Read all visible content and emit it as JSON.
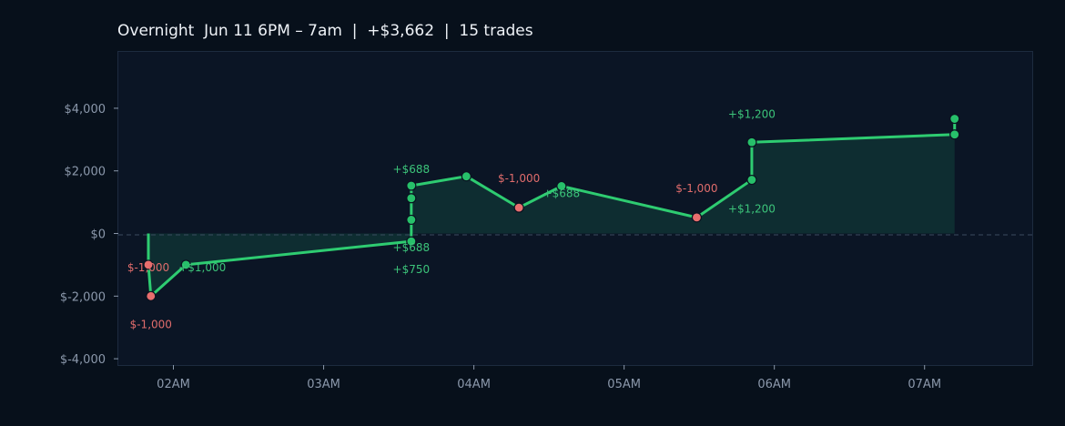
{
  "chart_data": {
    "type": "line",
    "title": "Overnight  Jun 11 6PM – 7am  |  +$3,662  |  15 trades",
    "xlabel": "",
    "ylabel": "",
    "x_ticks": [
      "02AM",
      "03AM",
      "04AM",
      "05AM",
      "06AM",
      "07AM"
    ],
    "y_ticks": [
      {
        "value": -4000,
        "label": "$-4,000"
      },
      {
        "value": -2000,
        "label": "$-2,000"
      },
      {
        "value": 0,
        "label": "$0"
      },
      {
        "value": 2000,
        "label": "$2,000"
      },
      {
        "value": 4000,
        "label": "$4,000"
      }
    ],
    "xlim": [
      "01:38",
      "07:43"
    ],
    "ylim": [
      -4200,
      5800
    ],
    "zero_line": true,
    "grid": false,
    "series": [
      {
        "points": [
          {
            "t": "01:50",
            "pnl": 0,
            "marker": false
          },
          {
            "t": "01:50",
            "pnl": -1000,
            "trade": -1000
          },
          {
            "t": "01:51",
            "pnl": -2000,
            "trade": -1000
          },
          {
            "t": "02:05",
            "pnl": -1000,
            "trade": 1000
          },
          {
            "t": "03:35",
            "pnl": -250,
            "trade": 750
          },
          {
            "t": "03:35",
            "pnl": 438,
            "trade": 688
          },
          {
            "t": "03:35",
            "pnl": 1126,
            "trade": 688
          },
          {
            "t": "03:35",
            "pnl": 1526,
            "trade": 400
          },
          {
            "t": "03:57",
            "pnl": 1826,
            "trade": 300
          },
          {
            "t": "04:18",
            "pnl": 826,
            "trade": -1000
          },
          {
            "t": "04:35",
            "pnl": 1514,
            "trade": 688
          },
          {
            "t": "05:29",
            "pnl": 514,
            "trade": -1000
          },
          {
            "t": "05:51",
            "pnl": 1714,
            "trade": 1200
          },
          {
            "t": "05:51",
            "pnl": 2914,
            "trade": 1200
          },
          {
            "t": "07:12",
            "pnl": 3162,
            "trade": 248
          },
          {
            "t": "07:12",
            "pnl": 3662,
            "trade": 500
          }
        ]
      }
    ],
    "annotations": [
      {
        "text": "$-1,000",
        "t": "01:50",
        "pnl": -1000,
        "color": "#e06c6c"
      },
      {
        "text": "+$1,000",
        "t": "02:05",
        "pnl": -1000,
        "color": "#3cc47a"
      },
      {
        "text": "$-1,000",
        "t": "01:51",
        "pnl": -2000,
        "color": "#e06c6c"
      },
      {
        "text": "+$688",
        "t": "03:35",
        "pnl": 1526,
        "color": "#3cc47a"
      },
      {
        "text": "+$688",
        "t": "03:35",
        "pnl": -250,
        "color": "#3cc47a"
      },
      {
        "text": "+$750",
        "t": "03:35",
        "pnl": -250,
        "color": "#3cc47a"
      },
      {
        "text": "$-1,000",
        "t": "04:18",
        "pnl": 826,
        "color": "#e06c6c"
      },
      {
        "text": "+$688",
        "t": "04:35",
        "pnl": 1514,
        "color": "#3cc47a"
      },
      {
        "text": "$-1,000",
        "t": "05:29",
        "pnl": 514,
        "color": "#e06c6c"
      },
      {
        "text": "+$1,200",
        "t": "05:51",
        "pnl": 2914,
        "color": "#3cc47a"
      },
      {
        "text": "+$1,200",
        "t": "05:51",
        "pnl": 1714,
        "color": "#3cc47a"
      }
    ],
    "colors": {
      "line": "#2ecc71",
      "fill": "#0f2e31",
      "win_marker": "#27c06a",
      "loss_marker": "#e86e6e",
      "plot_bg": "#0b1525",
      "page_bg": "#07101b"
    }
  }
}
